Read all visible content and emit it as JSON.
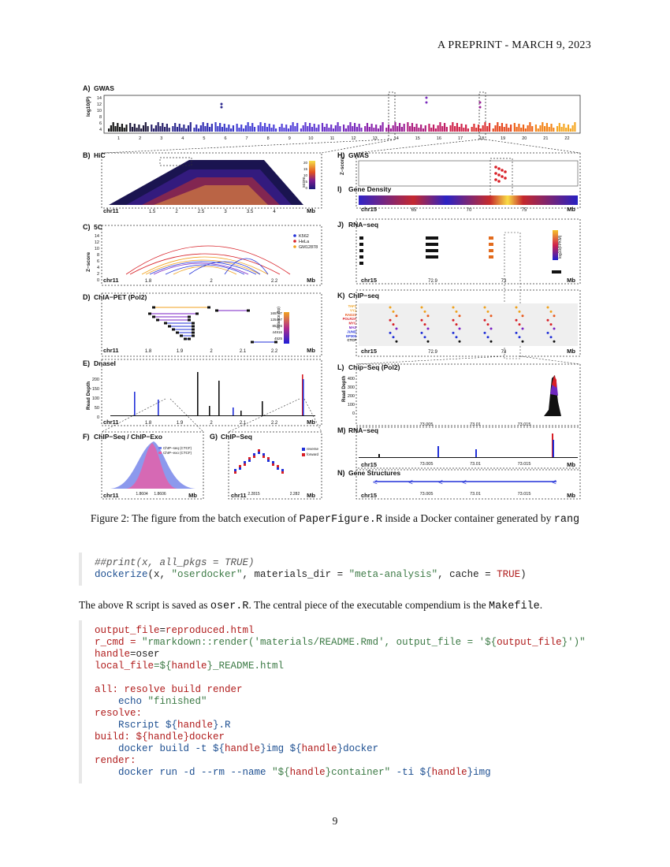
{
  "header": {
    "title": "A PREPRINT - MARCH 9, 2023"
  },
  "figure": {
    "panels": {
      "A": "A)",
      "A_title": "GWAS",
      "B": "B)",
      "B_title": "HiC",
      "C": "C)",
      "C_title": "5C",
      "D": "D)",
      "D_title": "ChIA−PET (Pol2)",
      "E": "E)",
      "E_title": "DnaseI",
      "F": "F)",
      "F_title": "ChIP−Seq / ChIP−Exo",
      "G": "G)",
      "G_title": "ChIP−Seq",
      "H": "H)",
      "H_title": "GWAS",
      "I": "I)",
      "I_title": "Gene Density",
      "J": "J)",
      "J_title": "RNA−seq",
      "K": "K)",
      "K_title": "ChIP−seq",
      "L": "L)",
      "L_title": "Chip−Seq (Pol2)",
      "M": "M)",
      "M_title": "RNA−seq",
      "N": "N)",
      "N_title": "Gene Structures"
    },
    "axis": {
      "chr11": "chr11",
      "chr15": "chr15",
      "mb": "Mb",
      "log10p": "log10(P)",
      "zscore": "Z−score",
      "readdepth": "Read Depth",
      "score": "score",
      "distance": "distance (bp)",
      "fpkm": "log10(FPKM)"
    },
    "ticks": {
      "A_y": [
        "14",
        "12",
        "10",
        "8",
        "6",
        "4"
      ],
      "A_x": [
        "1",
        "2",
        "3",
        "4",
        "5",
        "6",
        "7",
        "8",
        "9",
        "10",
        "11",
        "12",
        "13",
        "14",
        "15",
        "16",
        "17",
        "18",
        "19",
        "20",
        "21",
        "22"
      ],
      "B_x": [
        "1.5",
        "2",
        "2.5",
        "3",
        "3.5",
        "4"
      ],
      "C_y": [
        "14",
        "12",
        "10",
        "8",
        "6",
        "4",
        "2",
        "0"
      ],
      "C_x": [
        "1.8",
        "2",
        "2.2"
      ],
      "D_x": [
        "1.8",
        "1.9",
        "2",
        "2.1",
        "2.2"
      ],
      "E_y": [
        "200",
        "150",
        "100",
        "50",
        "0"
      ],
      "F_x": [
        "1.8604",
        "1.8606"
      ],
      "G_x": [
        "2.2815",
        "2.282"
      ],
      "I_x": [
        "65",
        "70",
        "75"
      ],
      "J_x": [
        "72.9",
        "73"
      ],
      "K_x": [
        "72.9",
        "73"
      ],
      "L_y": [
        "400",
        "300",
        "200",
        "100",
        "0"
      ],
      "L_x": [
        "73.005",
        "73.01",
        "73.015"
      ],
      "M_x": [
        "73.005",
        "73.01",
        "73.015"
      ],
      "N_x": [
        "73.005",
        "73.01",
        "73.015"
      ]
    },
    "legends": {
      "C": [
        "K562",
        "HeLa",
        "GM12878"
      ],
      "F": [
        "ChIP−seq (CTCF)",
        "ChIP−exo (CTCF)"
      ],
      "G": [
        "reverse",
        "forward"
      ],
      "K": [
        "TAF1",
        "YY1",
        "RAD21",
        "POLR2A",
        "MYC",
        "MAZ",
        "JUND",
        "EP300",
        "CTCF"
      ]
    },
    "colors": {
      "blue": "#2130d8",
      "red": "#d81f26",
      "orange": "#f0a11c",
      "purple": "#7a22c4"
    }
  },
  "caption": {
    "prefix": "Figure 2: The figure from the batch execution of ",
    "code": "PaperFigure.R",
    "middle": " inside a Docker container generated by ",
    "code2": "rang"
  },
  "code1": {
    "comment": "##print(x, all_pkgs = TRUE)",
    "fn": "dockerize",
    "args_a": "(x, ",
    "str1": "\"oserdocker\"",
    "args_b": ", materials_dir = ",
    "str2": "\"meta-analysis\"",
    "args_c": ", cache = ",
    "val": "TRUE",
    "close": ")"
  },
  "para": {
    "a": "The above R script is saved as ",
    "code": "oser.R",
    "b": ". The central piece of the executable compendium is the ",
    "code2": "Makefile",
    "c": "."
  },
  "makefile": {
    "l1a": "output_file",
    "l1b": "=",
    "l1c": "reproduced.html",
    "l2a": "r_cmd = ",
    "l2b": "\"rmarkdown::render('materials/README.Rmd', output_file = '${",
    "l2c": "output_file",
    "l2d": "}')\"",
    "l3a": "handle",
    "l3b": "=oser",
    "l4a": "local_file",
    "l4b": "=${",
    "l4c": "handle",
    "l4d": "}_README.html",
    "l5a": "all: ",
    "l5b": "resolve build render",
    "l6a": "echo ",
    "l6b": "\"finished\"",
    "l7": "resolve:",
    "l8a": "Rscript ${",
    "l8b": "handle",
    "l8c": "}.R",
    "l9a": "build: ",
    "l9b": "${",
    "l9c": "handle",
    "l9d": "}docker",
    "l10a": "docker build -t ${",
    "l10b": "handle",
    "l10c": "}img ${",
    "l10d": "handle",
    "l10e": "}docker",
    "l11": "render:",
    "l12a": "docker run -d --rm --name ",
    "l12b": "\"${",
    "l12c": "handle",
    "l12d": "}container\"",
    "l12e": " -ti ${",
    "l12f": "handle",
    "l12g": "}img"
  },
  "page_number": "9"
}
